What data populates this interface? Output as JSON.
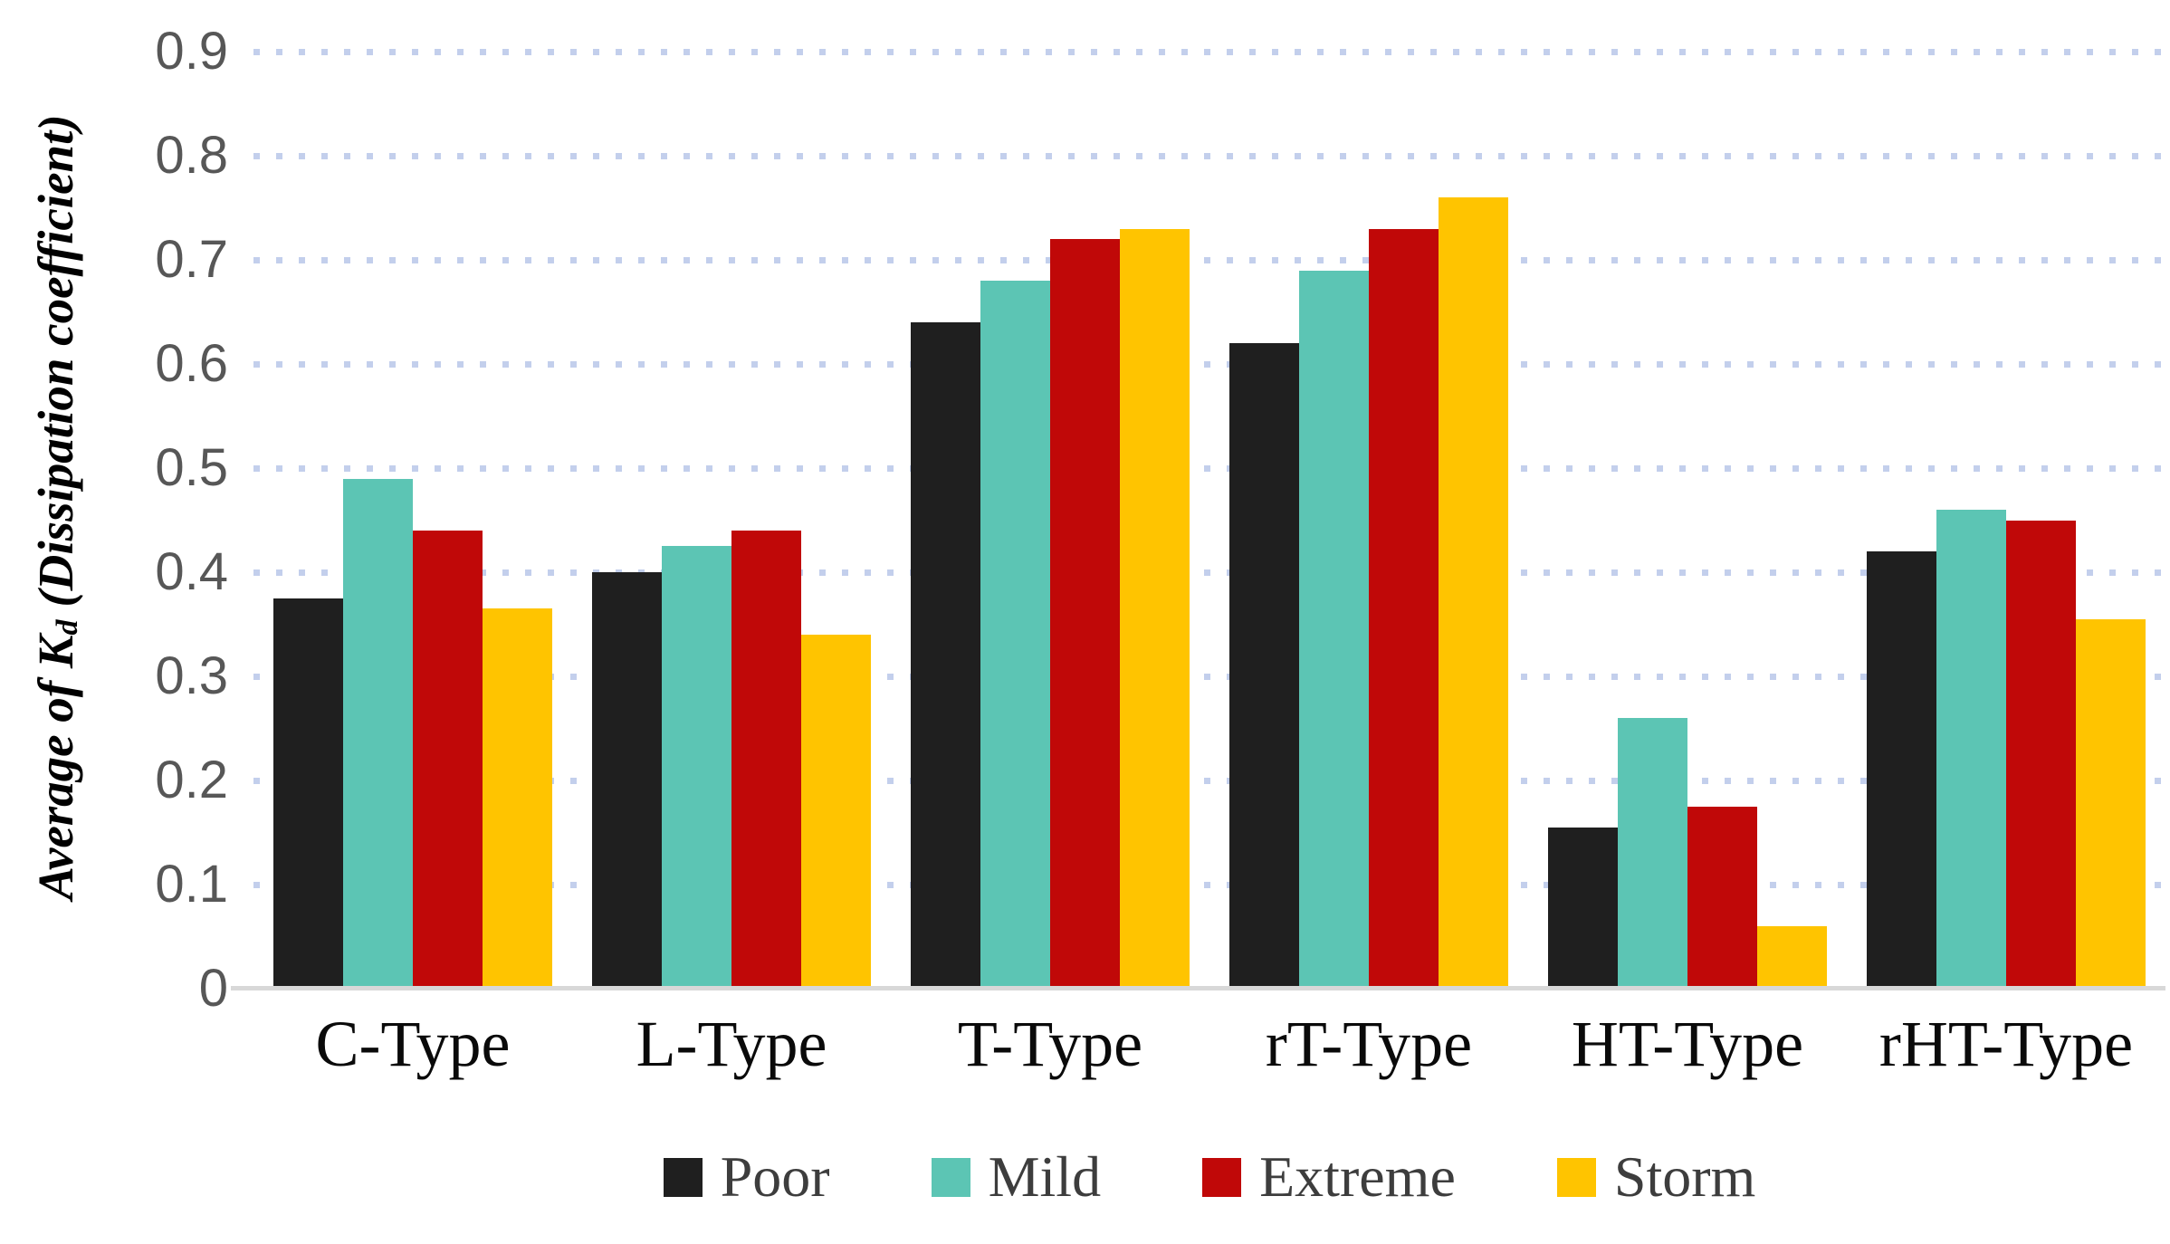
{
  "chart_data": {
    "type": "bar",
    "title": "",
    "categories": [
      "C-Type",
      "L-Type",
      "T-Type",
      "rT-Type",
      "HT-Type",
      "rHT-Type"
    ],
    "series": [
      {
        "name": "Poor",
        "color": "#1f1f1f",
        "values": [
          0.375,
          0.4,
          0.64,
          0.62,
          0.155,
          0.42
        ]
      },
      {
        "name": "Mild",
        "color": "#5cc5b4",
        "values": [
          0.49,
          0.425,
          0.68,
          0.69,
          0.26,
          0.46
        ]
      },
      {
        "name": "Extreme",
        "color": "#c00808",
        "values": [
          0.44,
          0.44,
          0.72,
          0.73,
          0.175,
          0.45
        ]
      },
      {
        "name": "Storm",
        "color": "#ffc400",
        "values": [
          0.365,
          0.34,
          0.73,
          0.76,
          0.06,
          0.355
        ]
      }
    ],
    "ylabel": {
      "main": "Average of K",
      "sub": "d",
      "rest": " (Dissipation coefficient)"
    },
    "yticks": [
      "0",
      "0.1",
      "0.2",
      "0.3",
      "0.4",
      "0.5",
      "0.6",
      "0.7",
      "0.8",
      "0.9"
    ],
    "ylim": [
      0,
      0.9
    ],
    "xlabel": "",
    "grid": "horizontal-dotted",
    "legend_position": "bottom-center"
  },
  "colors": {
    "background": "#ffffff",
    "gridline": "#c3cfec",
    "axis_line": "#d8d8d8",
    "tick_text": "#575757",
    "category_text": "#0a0a0a",
    "legend_text": "#3d3d3d"
  }
}
